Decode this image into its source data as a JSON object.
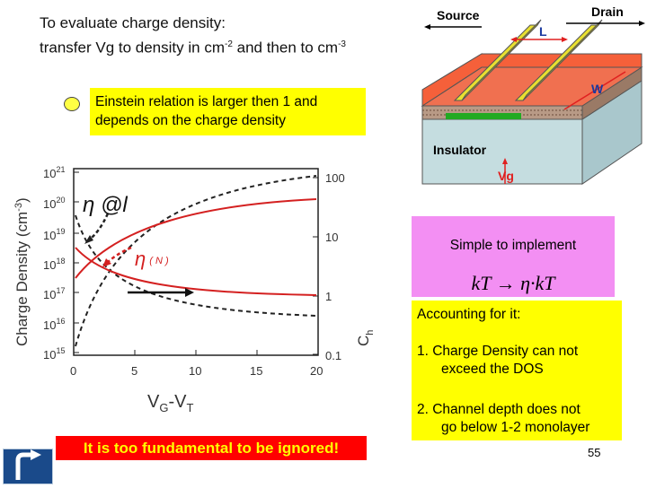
{
  "title": {
    "line1": "To evaluate charge density:",
    "line2_prefix": "transfer Vg to density in cm",
    "line2_exp1": "-2",
    "line2_mid": " and then to cm",
    "line2_exp2": "-3"
  },
  "einstein_note": {
    "line1": "Einstein relation is larger then 1 and",
    "line2": "depends on the charge density"
  },
  "device_diagram": {
    "source_label": "Source",
    "drain_label": "Drain",
    "length_label": "L",
    "width_label": "W",
    "insulator_label": "Insulator",
    "gate_label": "Vg"
  },
  "plot": {
    "ylabel_left": "Charge Density (cm",
    "ylabel_left_exp": "-3",
    "ylabel_left_close": ")",
    "ylabel_right": "C",
    "ylabel_right_sub": "h",
    "xlabel_main": "V",
    "xlabel_sub1": "G",
    "xlabel_mid": "-V",
    "xlabel_sub2": "T",
    "left_ticks": [
      {
        "base": "10",
        "exp": "21"
      },
      {
        "base": "10",
        "exp": "20"
      },
      {
        "base": "10",
        "exp": "19"
      },
      {
        "base": "10",
        "exp": "18"
      },
      {
        "base": "10",
        "exp": "17"
      },
      {
        "base": "10",
        "exp": "16"
      },
      {
        "base": "10",
        "exp": "15"
      }
    ],
    "right_ticks": [
      "100",
      "10",
      "1",
      "0.1"
    ],
    "x_ticks": [
      "0",
      "5",
      "10",
      "15",
      "20"
    ],
    "eta_at_label": "η @l",
    "eta_n_symbol": "η",
    "eta_n_arg": "( N )"
  },
  "simple_box": {
    "text": "Simple to implement",
    "formula": "kT → η·kT"
  },
  "accounting": {
    "heading": "Accounting for it:",
    "item1_line1": "1.  Charge Density can not",
    "item1_line2": "exceed the DOS",
    "item2_line1": "2.  Channel depth does not",
    "item2_line2": "go below 1-2 monolayer"
  },
  "footer": {
    "banner": "It is too fundamental to be ignored!",
    "page_number": "55"
  },
  "colors": {
    "yellow": "#ffff00",
    "pink": "#f38ff3",
    "red": "#ff0000",
    "curve_red": "#d42020"
  }
}
